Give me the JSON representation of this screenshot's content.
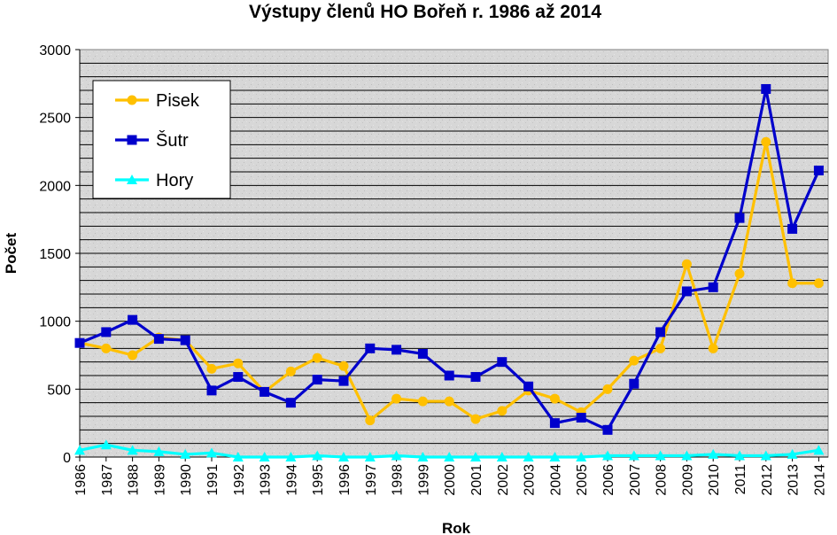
{
  "chart_data": {
    "type": "line",
    "title": "Výstupy členů HO Bořeň r. 1986 až 2014",
    "xlabel": "Rok",
    "ylabel": "Počet",
    "ylim": [
      0,
      3000
    ],
    "y_ticks": [
      0,
      500,
      1000,
      1500,
      2000,
      2500,
      3000
    ],
    "grid": true,
    "legend": "top-left",
    "categories": [
      "1986",
      "1987",
      "1988",
      "1989",
      "1990",
      "1991",
      "1992",
      "1993",
      "1994",
      "1995",
      "1996",
      "1997",
      "1998",
      "1999",
      "2000",
      "2001",
      "2002",
      "2003",
      "2004",
      "2005",
      "2006",
      "2007",
      "2008",
      "2009",
      "2010",
      "2011",
      "2012",
      "2013",
      "2014"
    ],
    "series": [
      {
        "name": "Pisek",
        "color": "#ffc000",
        "marker": "circle",
        "values": [
          840,
          800,
          750,
          880,
          860,
          650,
          690,
          480,
          630,
          730,
          670,
          270,
          430,
          410,
          410,
          280,
          340,
          490,
          430,
          330,
          500,
          710,
          800,
          1420,
          800,
          1350,
          2320,
          1280,
          1280
        ]
      },
      {
        "name": "Šutr",
        "color": "#0000cc",
        "marker": "square",
        "values": [
          840,
          920,
          1010,
          870,
          860,
          490,
          590,
          480,
          400,
          570,
          560,
          800,
          790,
          760,
          600,
          590,
          700,
          520,
          250,
          290,
          200,
          540,
          920,
          1220,
          1250,
          1760,
          2710,
          1680,
          2110
        ]
      },
      {
        "name": "Hory",
        "color": "#00ffff",
        "marker": "triangle",
        "values": [
          50,
          90,
          50,
          40,
          20,
          30,
          0,
          0,
          0,
          10,
          0,
          0,
          10,
          0,
          0,
          0,
          0,
          0,
          0,
          0,
          10,
          10,
          10,
          10,
          20,
          10,
          10,
          20,
          50
        ]
      }
    ]
  }
}
